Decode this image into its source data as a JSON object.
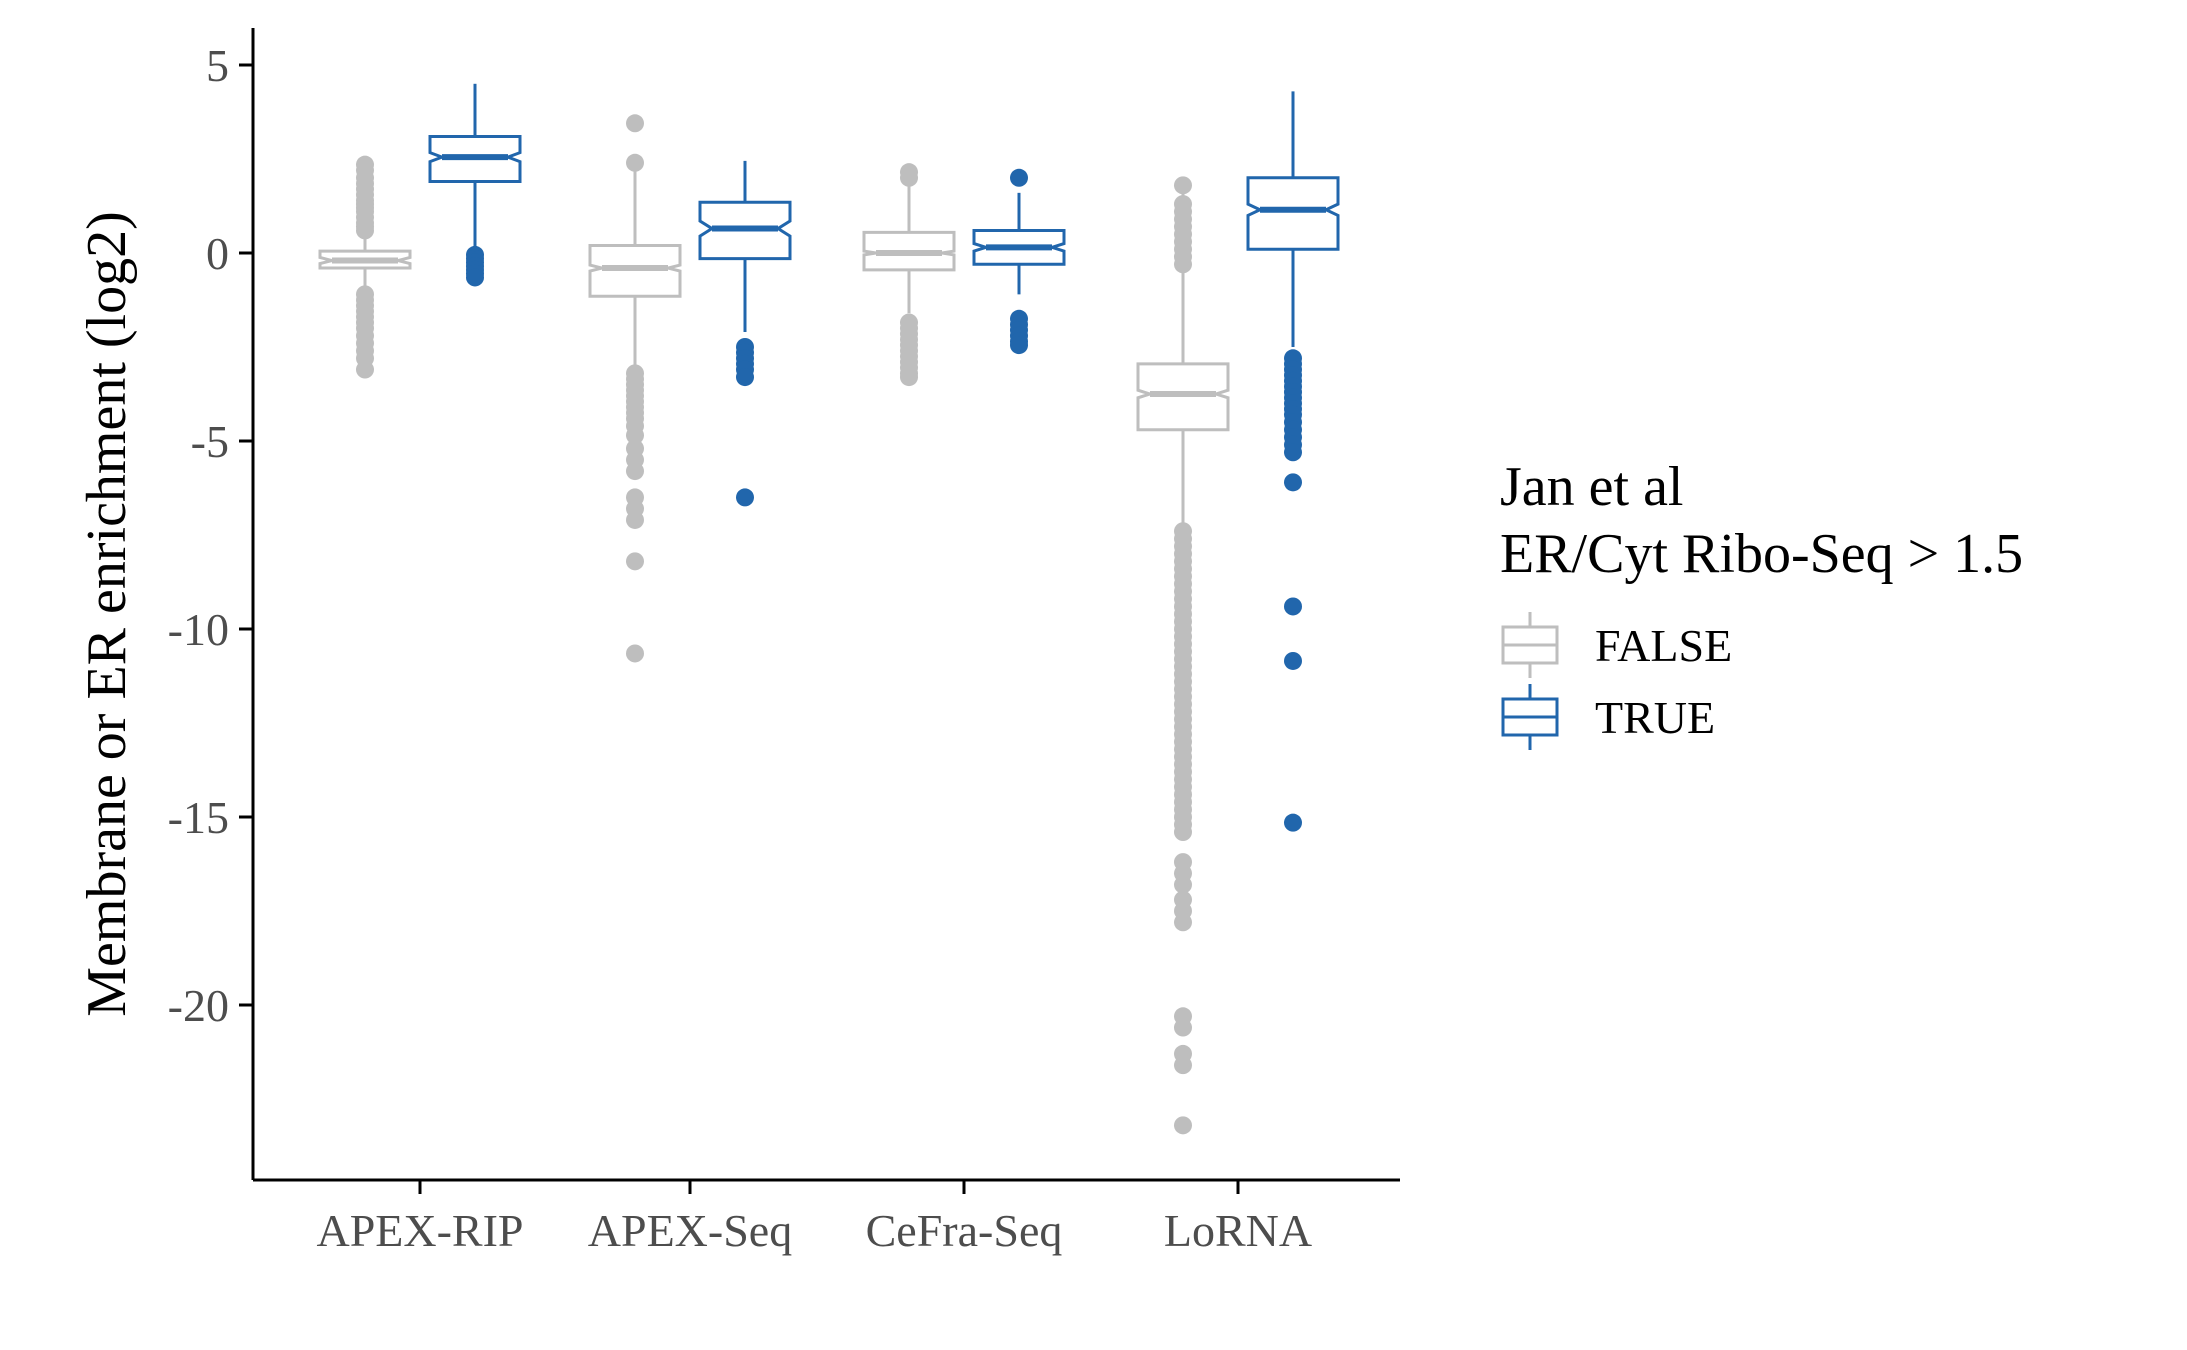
{
  "chart_data": {
    "type": "boxplot",
    "notched": true,
    "title": "",
    "xlabel": "",
    "ylabel": "Membrane or ER enrichment (log2)",
    "ylim": [
      -24,
      5.8
    ],
    "y_ticks": [
      5,
      0,
      -5,
      -10,
      -15,
      -20
    ],
    "y_tick_labels": [
      "5",
      "0",
      "-5",
      "-10",
      "-15",
      "-20"
    ],
    "categories": [
      "APEX-RIP",
      "APEX-Seq",
      "CeFra-Seq",
      "LoRNA"
    ],
    "legend": {
      "title_lines": [
        "Jan et al",
        "ER/Cyt Ribo-Seq > 1.5"
      ],
      "placement": "right"
    },
    "series": [
      {
        "name": "FALSE",
        "color": "#bebebe",
        "boxes": [
          {
            "category": "APEX-RIP",
            "whisker_low": -1.0,
            "q1": -0.4,
            "median": -0.2,
            "q3": 0.05,
            "whisker_high": 1.0,
            "notch_halfwidth": 0.08,
            "outliers": [
              2.35,
              2.2,
              2.0,
              1.85,
              1.7,
              1.55,
              1.4,
              1.3,
              1.2,
              1.1,
              0.95,
              0.8,
              0.7,
              0.6,
              -1.1,
              -1.25,
              -1.4,
              -1.55,
              -1.7,
              -1.85,
              -2.0,
              -2.2,
              -2.4,
              -2.6,
              -2.8,
              -3.1
            ]
          },
          {
            "category": "APEX-Seq",
            "whisker_low": -3.0,
            "q1": -1.15,
            "median": -0.4,
            "q3": 0.2,
            "whisker_high": 2.2,
            "notch_halfwidth": 0.08,
            "outliers": [
              3.45,
              2.4,
              -3.2,
              -3.35,
              -3.5,
              -3.65,
              -3.8,
              -3.95,
              -4.1,
              -4.25,
              -4.4,
              -4.6,
              -4.85,
              -5.2,
              -5.5,
              -5.8,
              -6.5,
              -6.8,
              -7.1,
              -8.2,
              -10.65
            ]
          },
          {
            "category": "CeFra-Seq",
            "whisker_low": -1.6,
            "q1": -0.45,
            "median": 0.0,
            "q3": 0.55,
            "whisker_high": 1.9,
            "notch_halfwidth": 0.05,
            "outliers": [
              2.15,
              2.0,
              -1.85,
              -2.0,
              -2.15,
              -2.3,
              -2.45,
              -2.6,
              -2.75,
              -2.9,
              -3.05,
              -3.2,
              -3.3
            ]
          },
          {
            "category": "LoRNA",
            "whisker_low": -7.2,
            "q1": -4.7,
            "median": -3.75,
            "q3": -2.95,
            "whisker_high": 1.6,
            "notch_halfwidth": 0.1,
            "outliers": [
              1.8,
              1.3,
              1.1,
              0.9,
              0.7,
              0.5,
              0.3,
              0.1,
              -0.1,
              -0.3,
              -7.4,
              -7.6,
              -7.8,
              -8.0,
              -8.2,
              -8.4,
              -8.6,
              -8.8,
              -9.0,
              -9.2,
              -9.4,
              -9.6,
              -9.8,
              -10.0,
              -10.2,
              -10.4,
              -10.6,
              -10.8,
              -11.0,
              -11.2,
              -11.4,
              -11.6,
              -11.8,
              -12.0,
              -12.2,
              -12.4,
              -12.6,
              -12.8,
              -13.0,
              -13.2,
              -13.4,
              -13.6,
              -13.8,
              -14.0,
              -14.2,
              -14.4,
              -14.6,
              -14.8,
              -15.0,
              -15.2,
              -15.4,
              -16.2,
              -16.5,
              -16.8,
              -17.2,
              -17.5,
              -17.8,
              -20.3,
              -20.6,
              -21.3,
              -21.6,
              -23.2
            ]
          }
        ]
      },
      {
        "name": "TRUE",
        "color": "#2166ac",
        "boxes": [
          {
            "category": "APEX-RIP",
            "whisker_low": 0.05,
            "q1": 1.9,
            "median": 2.55,
            "q3": 3.1,
            "whisker_high": 4.5,
            "notch_halfwidth": 0.12,
            "outliers": [
              -0.05,
              -0.15,
              -0.25,
              -0.35,
              -0.45,
              -0.55,
              -0.65
            ]
          },
          {
            "category": "APEX-Seq",
            "whisker_low": -2.1,
            "q1": -0.15,
            "median": 0.65,
            "q3": 1.35,
            "whisker_high": 2.45,
            "notch_halfwidth": 0.2,
            "outliers": [
              -2.5,
              -2.65,
              -2.8,
              -2.95,
              -3.1,
              -3.3,
              -6.5
            ]
          },
          {
            "category": "CeFra-Seq",
            "whisker_low": -1.1,
            "q1": -0.3,
            "median": 0.15,
            "q3": 0.6,
            "whisker_high": 1.6,
            "notch_halfwidth": 0.1,
            "outliers": [
              2.0,
              -1.75,
              -1.9,
              -2.05,
              -2.2,
              -2.35,
              -2.45
            ]
          },
          {
            "category": "LoRNA",
            "whisker_low": -2.5,
            "q1": 0.1,
            "median": 1.15,
            "q3": 2.0,
            "whisker_high": 4.3,
            "notch_halfwidth": 0.15,
            "outliers": [
              -2.8,
              -2.95,
              -3.1,
              -3.25,
              -3.4,
              -3.55,
              -3.7,
              -3.85,
              -4.0,
              -4.15,
              -4.3,
              -4.5,
              -4.7,
              -4.9,
              -5.1,
              -5.3,
              -6.1,
              -9.4,
              -10.85,
              -15.15
            ]
          }
        ]
      }
    ]
  }
}
